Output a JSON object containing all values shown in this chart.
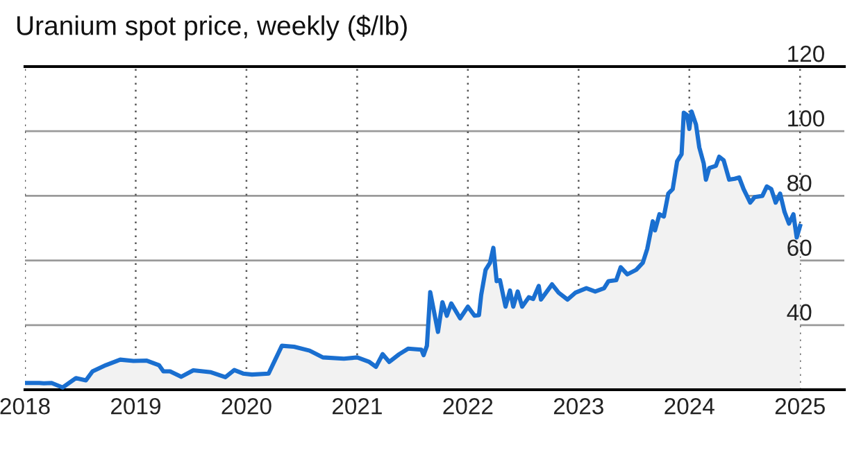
{
  "chart_data": {
    "type": "area",
    "title": "Uranium spot price, weekly ($/lb)",
    "xlim": [
      2018,
      2025.4
    ],
    "xticks": [
      2018,
      2019,
      2020,
      2021,
      2022,
      2023,
      2024,
      2025
    ],
    "ylim": [
      20,
      120
    ],
    "yticks": [
      {
        "value": 20,
        "label": null
      },
      40,
      60,
      80,
      100,
      120
    ],
    "grid": true,
    "series": [
      {
        "color": "#1a6fd0",
        "x": [
          2018.0,
          2018.13,
          2018.17,
          2018.24,
          2018.34,
          2018.46,
          2018.55,
          2018.61,
          2018.73,
          2018.86,
          2018.98,
          2019.1,
          2019.21,
          2019.25,
          2019.31,
          2019.41,
          2019.52,
          2019.68,
          2019.81,
          2019.89,
          2019.97,
          2020.05,
          2020.2,
          2020.26,
          2020.32,
          2020.43,
          2020.57,
          2020.69,
          2020.88,
          2021.0,
          2021.11,
          2021.17,
          2021.23,
          2021.29,
          2021.38,
          2021.46,
          2021.58,
          2021.6,
          2021.63,
          2021.66,
          2021.73,
          2021.77,
          2021.81,
          2021.85,
          2021.93,
          2022.0,
          2022.06,
          2022.1,
          2022.12,
          2022.16,
          2022.2,
          2022.23,
          2022.26,
          2022.29,
          2022.34,
          2022.38,
          2022.41,
          2022.45,
          2022.49,
          2022.55,
          2022.59,
          2022.64,
          2022.66,
          2022.76,
          2022.82,
          2022.9,
          2022.97,
          2023.07,
          2023.15,
          2023.23,
          2023.27,
          2023.34,
          2023.38,
          2023.44,
          2023.52,
          2023.58,
          2023.62,
          2023.67,
          2023.69,
          2023.73,
          2023.77,
          2023.81,
          2023.85,
          2023.89,
          2023.93,
          2023.95,
          2023.98,
          2024.0,
          2024.02,
          2024.06,
          2024.09,
          2024.13,
          2024.15,
          2024.18,
          2024.24,
          2024.27,
          2024.31,
          2024.36,
          2024.41,
          2024.45,
          2024.49,
          2024.55,
          2024.59,
          2024.66,
          2024.7,
          2024.74,
          2024.78,
          2024.82,
          2024.86,
          2024.9,
          2024.94,
          2024.97,
          2025.0
        ],
        "values": [
          22.1,
          22.1,
          22,
          22.1,
          20.7,
          23.6,
          22.9,
          25.7,
          27.6,
          29.3,
          28.9,
          29,
          27.6,
          25.7,
          25.7,
          24,
          26,
          25.4,
          23.9,
          26.1,
          25,
          24.7,
          25,
          29.3,
          33.6,
          33.3,
          32.1,
          30,
          29.6,
          30,
          28.6,
          27.1,
          31,
          28.6,
          31,
          32.7,
          32.4,
          30.7,
          33.6,
          50.2,
          37.9,
          47.1,
          42.9,
          46.7,
          42.1,
          45.7,
          42.9,
          43.1,
          49.3,
          57.1,
          59.3,
          63.9,
          53.6,
          53.9,
          45.7,
          50.7,
          45.7,
          50.4,
          45.7,
          48.6,
          48.1,
          52.1,
          47.9,
          52.6,
          50,
          47.9,
          50,
          51.4,
          50.4,
          51.4,
          53.6,
          53.9,
          57.9,
          55.7,
          57.1,
          59.3,
          63.6,
          72.1,
          69.3,
          74.3,
          73.6,
          80.7,
          82.1,
          90.7,
          92.9,
          105.7,
          105,
          100.7,
          106.1,
          102.1,
          95,
          90,
          85,
          88.6,
          89.3,
          92.1,
          91,
          85,
          85.3,
          85.7,
          82.1,
          77.9,
          79.6,
          80,
          82.9,
          82.1,
          77.9,
          80.7,
          75,
          71.4,
          74.3,
          67.1,
          70.7
        ]
      }
    ]
  }
}
